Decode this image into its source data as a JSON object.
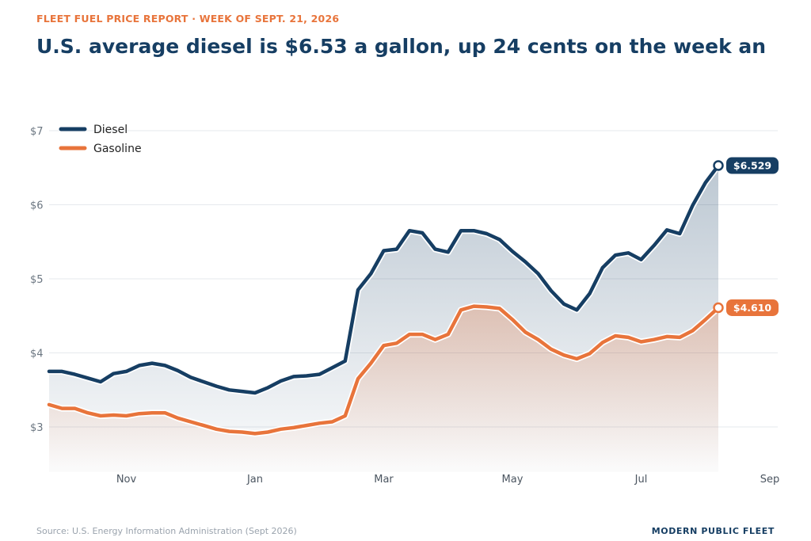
{
  "header": {
    "kicker": "FLEET FUEL PRICE REPORT · WEEK OF SEPT. 21, 2026",
    "headline": "U.S. average diesel is $6.53 a gallon, up 24 cents on the week an"
  },
  "footer": {
    "source": "Source: U.S. Energy Information Administration (Sept 2026)",
    "brand": "MODERN PUBLIC FLEET"
  },
  "colors": {
    "diesel": "#163e63",
    "gasoline": "#e8743b"
  },
  "chart_data": {
    "type": "area",
    "x_ticks": [
      "Nov",
      "Jan",
      "Mar",
      "May",
      "Jul",
      "Sep"
    ],
    "x_tick_weeks": [
      6,
      16,
      26,
      36,
      46,
      56
    ],
    "yticks": [
      3,
      4,
      5,
      6,
      7
    ],
    "ytick_labels": [
      "$3",
      "$4",
      "$5",
      "$6",
      "$7"
    ],
    "ylim": [
      2.5,
      7.1
    ],
    "grid": true,
    "legend_position": "top-left",
    "series": [
      {
        "name": "Diesel",
        "end_label": "$6.529",
        "values": [
          3.75,
          3.75,
          3.71,
          3.66,
          3.61,
          3.72,
          3.75,
          3.83,
          3.86,
          3.83,
          3.76,
          3.67,
          3.61,
          3.55,
          3.5,
          3.48,
          3.46,
          3.53,
          3.62,
          3.68,
          3.69,
          3.71,
          3.8,
          3.89,
          4.85,
          5.07,
          5.38,
          5.4,
          5.65,
          5.62,
          5.4,
          5.36,
          5.65,
          5.65,
          5.61,
          5.53,
          5.37,
          5.23,
          5.07,
          4.84,
          4.66,
          4.58,
          4.8,
          5.15,
          5.32,
          5.35,
          5.26,
          5.45,
          5.66,
          5.61,
          5.99,
          6.3,
          6.529
        ]
      },
      {
        "name": "Gasoline",
        "end_label": "$4.610",
        "values": [
          3.3,
          3.25,
          3.25,
          3.19,
          3.15,
          3.16,
          3.15,
          3.18,
          3.19,
          3.19,
          3.12,
          3.07,
          3.02,
          2.97,
          2.94,
          2.93,
          2.91,
          2.93,
          2.97,
          2.99,
          3.02,
          3.05,
          3.07,
          3.15,
          3.65,
          3.86,
          4.1,
          4.13,
          4.25,
          4.25,
          4.18,
          4.25,
          4.58,
          4.63,
          4.62,
          4.6,
          4.45,
          4.28,
          4.18,
          4.05,
          3.97,
          3.92,
          3.99,
          4.14,
          4.23,
          4.21,
          4.15,
          4.18,
          4.22,
          4.21,
          4.3,
          4.45,
          4.61
        ]
      }
    ]
  }
}
